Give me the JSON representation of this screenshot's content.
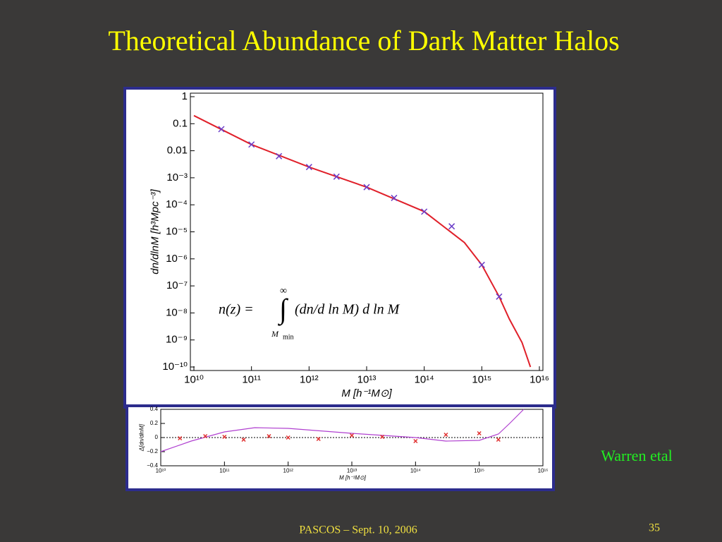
{
  "slide": {
    "title": "Theoretical Abundance of Dark Matter Halos",
    "credit": "Warren etal",
    "footer": "PASCOS – Sept. 10, 2006",
    "page_number": "35"
  },
  "chart_data": [
    {
      "type": "line",
      "xlog": true,
      "ylog": true,
      "grid": false,
      "xlabel": "M [h⁻¹M⊙]",
      "ylabel": "dn/dlnM [h³Mpc⁻³]",
      "annotation": {
        "lhs": "n(z) =",
        "integral": "∫",
        "upper": "∞",
        "integrand": "(dn/d ln M) d ln M",
        "lower": "M",
        "lower_sub": "min"
      },
      "xlim": [
        10000000000.0,
        1e+16
      ],
      "ylim": [
        1e-10,
        1
      ],
      "xticks": [
        {
          "value": 10000000000.0,
          "label": "10¹⁰"
        },
        {
          "value": 100000000000.0,
          "label": "10¹¹"
        },
        {
          "value": 1000000000000.0,
          "label": "10¹²"
        },
        {
          "value": 10000000000000.0,
          "label": "10¹³"
        },
        {
          "value": 100000000000000.0,
          "label": "10¹⁴"
        },
        {
          "value": 1000000000000000.0,
          "label": "10¹⁵"
        },
        {
          "value": 1e+16,
          "label": "10¹⁶"
        }
      ],
      "yticks": [
        {
          "value": 1e-10,
          "label": "10⁻¹⁰"
        },
        {
          "value": 1e-09,
          "label": "10⁻⁹"
        },
        {
          "value": 1e-08,
          "label": "10⁻⁸"
        },
        {
          "value": 1e-07,
          "label": "10⁻⁷"
        },
        {
          "value": 1e-06,
          "label": "10⁻⁶"
        },
        {
          "value": 1e-05,
          "label": "10⁻⁵"
        },
        {
          "value": 0.0001,
          "label": "10⁻⁴"
        },
        {
          "value": 0.001,
          "label": "10⁻³"
        },
        0.01,
        0.1,
        1
      ],
      "series": [
        {
          "color": "#e0202a",
          "style": "line",
          "x": [
            10000000000.0,
            100000000000.0,
            1000000000000.0,
            10000000000000.0,
            100000000000000.0,
            500000000000000.0,
            1000000000000000.0,
            2000000000000000.0,
            3000000000000000.0,
            5000000000000000.0,
            7000000000000000.0
          ],
          "values": [
            0.2,
            0.017,
            0.0025,
            0.00045,
            5.6e-05,
            4e-06,
            6e-07,
            4e-08,
            6e-09,
            8e-10,
            1e-10
          ]
        },
        {
          "color": "#6a3dc8",
          "style": "markers",
          "x": [
            30000000000.0,
            100000000000.0,
            300000000000.0,
            1000000000000.0,
            3000000000000.0,
            10000000000000.0,
            30000000000000.0,
            100000000000000.0,
            300000000000000.0,
            1000000000000000.0,
            2000000000000000.0
          ],
          "values": [
            0.063,
            0.017,
            0.0063,
            0.0025,
            0.0011,
            0.00045,
            0.00018,
            5.6e-05,
            1.6e-05,
            6e-07,
            4e-08
          ]
        }
      ]
    },
    {
      "type": "line",
      "xlog": true,
      "ylog": false,
      "grid": false,
      "xlabel": "M [h⁻¹M⊙]",
      "ylabel": "Δ[dn/dlnM]",
      "xlim": [
        10000000000.0,
        1e+16
      ],
      "ylim": [
        -0.4,
        0.4
      ],
      "xticks": [
        {
          "value": 10000000000.0,
          "label": "10¹⁰"
        },
        {
          "value": 100000000000.0,
          "label": "10¹¹"
        },
        {
          "value": 1000000000000.0,
          "label": "10¹²"
        },
        {
          "value": 10000000000000.0,
          "label": "10¹³"
        },
        {
          "value": 100000000000000.0,
          "label": "10¹⁴"
        },
        {
          "value": 1000000000000000.0,
          "label": "10¹⁵"
        },
        {
          "value": 1e+16,
          "label": "10¹⁶"
        }
      ],
      "yticks": [
        {
          "value": -0.4,
          "label": "−0.4"
        },
        {
          "value": -0.2,
          "label": "−0.2"
        },
        0,
        0.2,
        0.4
      ],
      "series": [
        {
          "color": "#b040d0",
          "style": "line",
          "x": [
            10000000000.0,
            30000000000.0,
            100000000000.0,
            300000000000.0,
            1000000000000.0,
            10000000000000.0,
            100000000000000.0,
            300000000000000.0,
            1000000000000000.0,
            2000000000000000.0,
            3000000000000000.0,
            5000000000000000.0
          ],
          "values": [
            -0.2,
            -0.05,
            0.08,
            0.14,
            0.13,
            0.06,
            0,
            -0.05,
            -0.04,
            0.05,
            0.2,
            0.4
          ]
        },
        {
          "color": "#e03030",
          "style": "markers",
          "x": [
            20000000000.0,
            50000000000.0,
            100000000000.0,
            200000000000.0,
            500000000000.0,
            1000000000000.0,
            3000000000000.0,
            10000000000000.0,
            30000000000000.0,
            100000000000000.0,
            300000000000000.0,
            1000000000000000.0,
            2000000000000000.0
          ],
          "values": [
            -0.01,
            0.02,
            0.01,
            -0.03,
            0.02,
            0,
            -0.02,
            0.03,
            0.01,
            -0.05,
            0.04,
            0.06,
            -0.03
          ]
        }
      ]
    }
  ]
}
